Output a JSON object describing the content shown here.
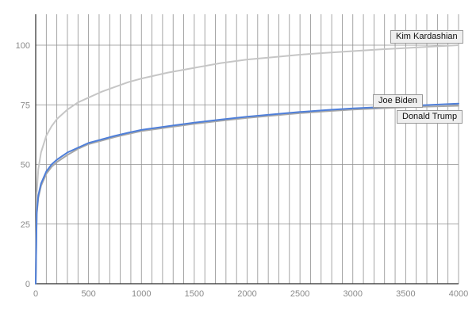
{
  "chart_data": {
    "type": "line",
    "title": "",
    "xlabel": "",
    "ylabel": "",
    "xlim": [
      0,
      4000
    ],
    "ylim": [
      0,
      100
    ],
    "xticks": [
      0,
      500,
      1000,
      1500,
      2000,
      2500,
      3000,
      3500,
      4000
    ],
    "yticks": [
      0,
      25,
      50,
      75,
      100
    ],
    "minor_x_grid_step": 100,
    "grid": true,
    "legend_position": "inline-right",
    "colors": {
      "grid": "#8f8f8f",
      "axis": "#2b2b2b",
      "tick_text": "#8a8a8a",
      "kim": "#c6c6c6",
      "trump": "#a8a8a8",
      "biden": "#4f7fd9"
    },
    "x": [
      0,
      10,
      25,
      50,
      100,
      150,
      200,
      300,
      400,
      500,
      625,
      750,
      875,
      1000,
      1250,
      1500,
      1750,
      2000,
      2250,
      2500,
      2750,
      3000,
      3250,
      3500,
      3750,
      4000
    ],
    "series": [
      {
        "name": "Kim Kardashian",
        "color": "#c6c6c6",
        "values": [
          0,
          38,
          48,
          55,
          62,
          66,
          69,
          73,
          76,
          78,
          80.5,
          82.5,
          84.5,
          86,
          88.5,
          90.5,
          92.5,
          94,
          95,
          96,
          96.8,
          97.5,
          98.2,
          98.8,
          99.4,
          100
        ]
      },
      {
        "name": "Donald Trump",
        "color": "#a8a8a8",
        "values": [
          0,
          29,
          36,
          41,
          46,
          49,
          51,
          54,
          56.5,
          58.5,
          60,
          61.5,
          62.8,
          64,
          65.5,
          67,
          68.3,
          69.5,
          70.5,
          71.5,
          72.3,
          73,
          73.5,
          74,
          74.3,
          74.6
        ]
      },
      {
        "name": "Joe Biden",
        "color": "#4f7fd9",
        "values": [
          0,
          30,
          37,
          42,
          47,
          50,
          52,
          55,
          57,
          59,
          60.5,
          62,
          63.3,
          64.5,
          66,
          67.5,
          68.8,
          70,
          71,
          72,
          72.8,
          73.5,
          74,
          74.5,
          75,
          75.5
        ]
      }
    ]
  }
}
